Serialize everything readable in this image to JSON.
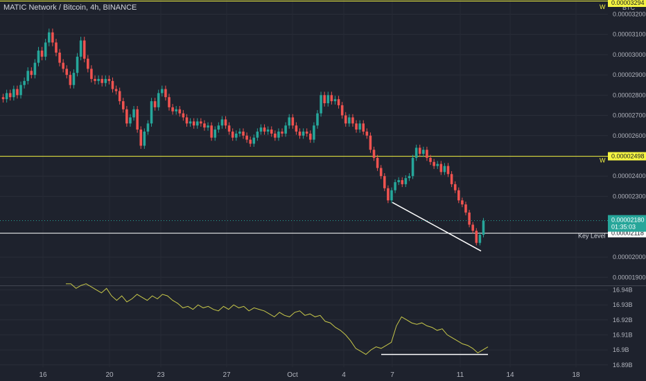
{
  "chart_data": [
    {
      "type": "candlestick",
      "title": "MATIC Network / Bitcoin, 4h, BINANCE",
      "currency_label": "BTC",
      "y_ticks": [
        "0.00003200",
        "0.00003100",
        "0.00003000",
        "0.00002900",
        "0.00002800",
        "0.00002700",
        "0.00002600",
        "0.00002400",
        "0.00002300",
        "0.00002000",
        "0.00001900"
      ],
      "y_tick_values": [
        3.2e-05,
        3.1e-05,
        3e-05,
        2.9e-05,
        2.8e-05,
        2.7e-05,
        2.6e-05,
        2.4e-05,
        2.3e-05,
        2e-05,
        1.9e-05
      ],
      "ylim": [
        1.86e-05,
        3.27e-05
      ],
      "current_price": "0.00002180",
      "current_price_value": 2.18e-05,
      "countdown": "01:35:03",
      "horizontal_levels": [
        {
          "label": "W",
          "value_text": "0.00002498",
          "value": 2.498e-05,
          "color": "#f5f542"
        },
        {
          "label": "W",
          "value_text": "0.00003294",
          "value": 3.294e-05,
          "color": "#f5f542"
        },
        {
          "label": "Key Level",
          "value_text": "0.00002118",
          "value": 2.118e-05,
          "color": "#ffffff"
        }
      ],
      "trendline": {
        "from": {
          "date": "Oct 7",
          "value": 2.27e-05
        },
        "to": {
          "date": "Oct 12",
          "value": 2.03e-05
        },
        "color": "#ffffff"
      },
      "candles_approx": [
        [
          2.79e-05,
          2.78e-05
        ],
        [
          2.78e-05,
          2.81e-05
        ],
        [
          2.81e-05,
          2.79e-05
        ],
        [
          2.79e-05,
          2.83e-05
        ],
        [
          2.83e-05,
          2.8e-05
        ],
        [
          2.8e-05,
          2.85e-05
        ],
        [
          2.85e-05,
          2.87e-05
        ],
        [
          2.87e-05,
          2.92e-05
        ],
        [
          2.92e-05,
          2.9e-05
        ],
        [
          2.9e-05,
          2.96e-05
        ],
        [
          2.96e-05,
          3.02e-05
        ],
        [
          3.02e-05,
          2.99e-05
        ],
        [
          2.99e-05,
          3.06e-05
        ],
        [
          3.06e-05,
          3.11e-05
        ],
        [
          3.11e-05,
          3.06e-05
        ],
        [
          3.06e-05,
          3.01e-05
        ],
        [
          3.01e-05,
          2.96e-05
        ],
        [
          2.96e-05,
          2.93e-05
        ],
        [
          2.93e-05,
          2.9e-05
        ],
        [
          2.9e-05,
          2.85e-05
        ],
        [
          2.85e-05,
          2.91e-05
        ],
        [
          2.91e-05,
          2.99e-05
        ],
        [
          2.99e-05,
          3.07e-05
        ],
        [
          3.07e-05,
          2.98e-05
        ],
        [
          2.98e-05,
          2.93e-05
        ],
        [
          2.93e-05,
          2.88e-05
        ],
        [
          2.88e-05,
          2.87e-05
        ],
        [
          2.87e-05,
          2.88e-05
        ],
        [
          2.88e-05,
          2.86e-05
        ],
        [
          2.86e-05,
          2.88e-05
        ],
        [
          2.88e-05,
          2.87e-05
        ],
        [
          2.87e-05,
          2.83e-05
        ],
        [
          2.83e-05,
          2.82e-05
        ],
        [
          2.82e-05,
          2.77e-05
        ],
        [
          2.77e-05,
          2.73e-05
        ],
        [
          2.73e-05,
          2.66e-05
        ],
        [
          2.66e-05,
          2.69e-05
        ],
        [
          2.69e-05,
          2.73e-05
        ],
        [
          2.73e-05,
          2.63e-05
        ],
        [
          2.63e-05,
          2.55e-05
        ],
        [
          2.55e-05,
          2.62e-05
        ],
        [
          2.62e-05,
          2.66e-05
        ],
        [
          2.66e-05,
          2.77e-05
        ],
        [
          2.77e-05,
          2.74e-05
        ],
        [
          2.74e-05,
          2.81e-05
        ],
        [
          2.81e-05,
          2.83e-05
        ],
        [
          2.83e-05,
          2.79e-05
        ],
        [
          2.79e-05,
          2.74e-05
        ],
        [
          2.74e-05,
          2.72e-05
        ],
        [
          2.72e-05,
          2.73e-05
        ],
        [
          2.73e-05,
          2.71e-05
        ],
        [
          2.71e-05,
          2.69e-05
        ],
        [
          2.69e-05,
          2.66e-05
        ],
        [
          2.66e-05,
          2.67e-05
        ],
        [
          2.67e-05,
          2.65e-05
        ],
        [
          2.65e-05,
          2.67e-05
        ],
        [
          2.67e-05,
          2.66e-05
        ],
        [
          2.66e-05,
          2.64e-05
        ],
        [
          2.64e-05,
          2.65e-05
        ],
        [
          2.65e-05,
          2.59e-05
        ],
        [
          2.59e-05,
          2.63e-05
        ],
        [
          2.63e-05,
          2.65e-05
        ],
        [
          2.65e-05,
          2.68e-05
        ],
        [
          2.68e-05,
          2.65e-05
        ],
        [
          2.65e-05,
          2.62e-05
        ],
        [
          2.62e-05,
          2.59e-05
        ],
        [
          2.59e-05,
          2.61e-05
        ],
        [
          2.61e-05,
          2.62e-05
        ],
        [
          2.62e-05,
          2.6e-05
        ],
        [
          2.6e-05,
          2.58e-05
        ],
        [
          2.58e-05,
          2.56e-05
        ],
        [
          2.56e-05,
          2.59e-05
        ],
        [
          2.59e-05,
          2.62e-05
        ],
        [
          2.62e-05,
          2.64e-05
        ],
        [
          2.64e-05,
          2.62e-05
        ],
        [
          2.62e-05,
          2.63e-05
        ],
        [
          2.63e-05,
          2.61e-05
        ],
        [
          2.61e-05,
          2.59e-05
        ],
        [
          2.59e-05,
          2.62e-05
        ],
        [
          2.62e-05,
          2.61e-05
        ],
        [
          2.61e-05,
          2.65e-05
        ],
        [
          2.65e-05,
          2.69e-05
        ],
        [
          2.69e-05,
          2.65e-05
        ],
        [
          2.65e-05,
          2.62e-05
        ],
        [
          2.62e-05,
          2.6e-05
        ],
        [
          2.6e-05,
          2.62e-05
        ],
        [
          2.62e-05,
          2.61e-05
        ],
        [
          2.61e-05,
          2.58e-05
        ],
        [
          2.58e-05,
          2.65e-05
        ],
        [
          2.65e-05,
          2.71e-05
        ],
        [
          2.71e-05,
          2.8e-05
        ],
        [
          2.8e-05,
          2.76e-05
        ],
        [
          2.76e-05,
          2.8e-05
        ],
        [
          2.8e-05,
          2.77e-05
        ],
        [
          2.77e-05,
          2.78e-05
        ],
        [
          2.78e-05,
          2.75e-05
        ],
        [
          2.75e-05,
          2.7e-05
        ],
        [
          2.7e-05,
          2.66e-05
        ],
        [
          2.66e-05,
          2.69e-05
        ],
        [
          2.69e-05,
          2.66e-05
        ],
        [
          2.66e-05,
          2.63e-05
        ],
        [
          2.63e-05,
          2.66e-05
        ],
        [
          2.66e-05,
          2.62e-05
        ],
        [
          2.62e-05,
          2.6e-05
        ],
        [
          2.6e-05,
          2.53e-05
        ],
        [
          2.53e-05,
          2.49e-05
        ],
        [
          2.49e-05,
          2.44e-05
        ],
        [
          2.44e-05,
          2.4e-05
        ],
        [
          2.4e-05,
          2.34e-05
        ],
        [
          2.34e-05,
          2.28e-05
        ],
        [
          2.28e-05,
          2.33e-05
        ],
        [
          2.33e-05,
          2.37e-05
        ],
        [
          2.37e-05,
          2.38e-05
        ],
        [
          2.38e-05,
          2.36e-05
        ],
        [
          2.36e-05,
          2.39e-05
        ],
        [
          2.39e-05,
          2.4e-05
        ],
        [
          2.4e-05,
          2.49e-05
        ],
        [
          2.49e-05,
          2.54e-05
        ],
        [
          2.54e-05,
          2.51e-05
        ],
        [
          2.51e-05,
          2.53e-05
        ],
        [
          2.53e-05,
          2.49e-05
        ],
        [
          2.49e-05,
          2.47e-05
        ],
        [
          2.47e-05,
          2.45e-05
        ],
        [
          2.45e-05,
          2.46e-05
        ],
        [
          2.46e-05,
          2.42e-05
        ],
        [
          2.42e-05,
          2.45e-05
        ],
        [
          2.45e-05,
          2.41e-05
        ],
        [
          2.41e-05,
          2.36e-05
        ],
        [
          2.36e-05,
          2.33e-05
        ],
        [
          2.33e-05,
          2.28e-05
        ],
        [
          2.28e-05,
          2.26e-05
        ],
        [
          2.26e-05,
          2.22e-05
        ],
        [
          2.22e-05,
          2.16e-05
        ],
        [
          2.16e-05,
          2.13e-05
        ],
        [
          2.13e-05,
          2.07e-05
        ],
        [
          2.07e-05,
          2.11e-05
        ],
        [
          2.11e-05,
          2.18e-05
        ]
      ]
    },
    {
      "type": "line",
      "y_ticks": [
        "16.94B",
        "16.93B",
        "16.92B",
        "16.91B",
        "16.9B",
        "16.89B"
      ],
      "y_tick_values": [
        16.94,
        16.93,
        16.92,
        16.91,
        16.9,
        16.89
      ],
      "ylim": [
        16.8885,
        16.9425
      ],
      "line_color": "#c9c94a",
      "support_line": {
        "from": {
          "date": "Oct 7",
          "value": 16.897
        },
        "to": {
          "date": "Oct 12",
          "value": 16.897
        },
        "color": "#ffffff"
      },
      "values": [
        16.944,
        16.944,
        16.941,
        16.943,
        16.944,
        16.942,
        16.94,
        16.938,
        16.941,
        16.936,
        16.933,
        16.936,
        16.932,
        16.934,
        16.937,
        16.935,
        16.933,
        16.936,
        16.934,
        16.937,
        16.936,
        16.933,
        16.931,
        16.928,
        16.929,
        16.927,
        16.93,
        16.928,
        16.929,
        16.927,
        16.926,
        16.929,
        16.927,
        16.93,
        16.928,
        16.929,
        16.926,
        16.928,
        16.927,
        16.926,
        16.924,
        16.922,
        16.925,
        16.923,
        16.922,
        16.925,
        16.926,
        16.923,
        16.924,
        16.922,
        16.923,
        16.919,
        16.918,
        16.915,
        16.913,
        16.91,
        16.906,
        16.901,
        16.899,
        16.897,
        16.9,
        16.902,
        16.901,
        16.903,
        16.905,
        16.916,
        16.922,
        16.92,
        16.918,
        16.917,
        16.918,
        16.916,
        16.915,
        16.913,
        16.914,
        16.91,
        16.908,
        16.906,
        16.904,
        16.903,
        16.901,
        16.898,
        16.9,
        16.902
      ]
    }
  ],
  "x_axis": {
    "labels": [
      "16",
      "20",
      "23",
      "27",
      "Oct",
      "4",
      "7",
      "11",
      "14",
      "18"
    ],
    "label_values": [
      16,
      20,
      23,
      27,
      1,
      4,
      7,
      11,
      14,
      18
    ]
  }
}
